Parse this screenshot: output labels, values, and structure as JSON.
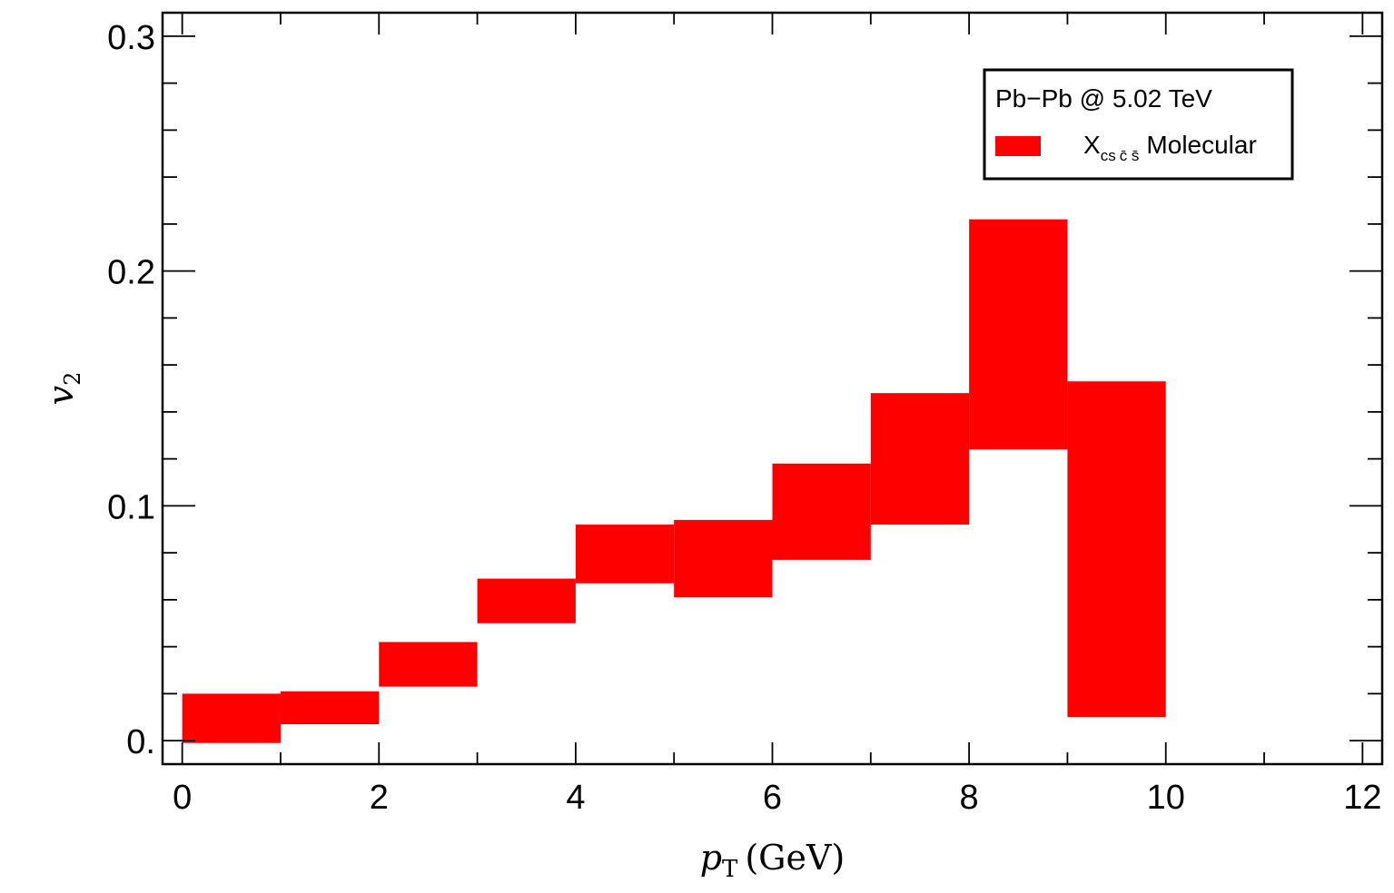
{
  "chart_data": {
    "type": "bar",
    "variant": "error-band",
    "xlabel": "p_T (GeV)",
    "xlabel_main": "p",
    "xlabel_sub": "T",
    "xlabel_unit": "(GeV)",
    "ylabel": "v_2",
    "ylabel_main": "v",
    "ylabel_sub": "2",
    "xlim": [
      -0.2,
      12.2
    ],
    "ylim": [
      -0.01,
      0.31
    ],
    "x_ticks": [
      0,
      2,
      4,
      6,
      8,
      10,
      12
    ],
    "x_tick_labels": [
      "0",
      "2",
      "4",
      "6",
      "8",
      "10",
      "12"
    ],
    "y_ticks": [
      0.0,
      0.1,
      0.2,
      0.3
    ],
    "y_tick_labels": [
      "0.",
      "0.1",
      "0.2",
      "0.3"
    ],
    "grid": false,
    "legend_position": "top-right",
    "legend": {
      "header": "Pb−Pb @ 5.02 TeV",
      "entries": [
        {
          "color": "#ff0000",
          "label_main": "X",
          "label_sub": "cs",
          "label_sub_bar": "c̄ s̄",
          "label_rest": "Molecular"
        }
      ]
    },
    "series": [
      {
        "name": "X_{cs c̄ s̄} Molecular",
        "color": "#ff0000",
        "bins": [
          {
            "x0": 0,
            "x1": 1,
            "low": -0.001,
            "high": 0.02
          },
          {
            "x0": 1,
            "x1": 2,
            "low": 0.007,
            "high": 0.021
          },
          {
            "x0": 2,
            "x1": 3,
            "low": 0.023,
            "high": 0.042
          },
          {
            "x0": 3,
            "x1": 4,
            "low": 0.05,
            "high": 0.069
          },
          {
            "x0": 4,
            "x1": 5,
            "low": 0.067,
            "high": 0.092
          },
          {
            "x0": 5,
            "x1": 6,
            "low": 0.061,
            "high": 0.094
          },
          {
            "x0": 6,
            "x1": 7,
            "low": 0.077,
            "high": 0.118
          },
          {
            "x0": 7,
            "x1": 8,
            "low": 0.092,
            "high": 0.148
          },
          {
            "x0": 8,
            "x1": 9,
            "low": 0.124,
            "high": 0.222
          },
          {
            "x0": 9,
            "x1": 10,
            "low": 0.01,
            "high": 0.153
          }
        ]
      }
    ]
  }
}
